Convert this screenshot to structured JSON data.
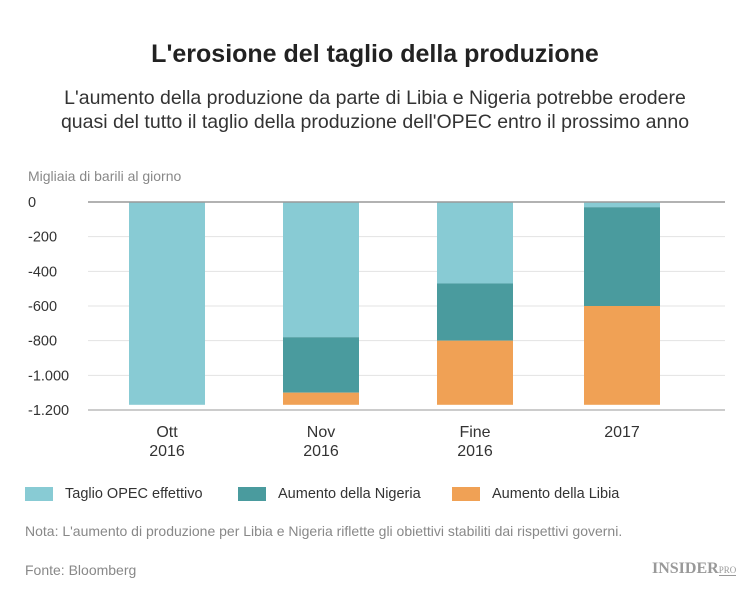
{
  "title": "L'erosione del taglio della produzione",
  "subtitle_line1": "L'aumento della produzione da parte di Libia e Nigeria potrebbe erodere",
  "subtitle_line2": "quasi del tutto il taglio della produzione dell'OPEC entro il prossimo anno",
  "note": "Nota: L'aumento di produzione per Libia e Nigeria riflette gli obiettivi stabiliti dai rispettivi governi.",
  "source": "Fonte: Bloomberg",
  "logo": {
    "main": "INSIDER",
    "suffix": "PRO"
  },
  "chart_data": {
    "type": "bar",
    "stacked": true,
    "ylabel": "Migliaia di barili al giorno",
    "ylim": [
      -1200,
      0
    ],
    "yticks": [
      0,
      -200,
      -400,
      -600,
      -800,
      -1000,
      -1200
    ],
    "ytick_labels": [
      "0",
      "-200",
      "-400",
      "-600",
      "-800",
      "-1.000",
      "-1.200"
    ],
    "categories": [
      [
        "Ott",
        "2016"
      ],
      [
        "Nov",
        "2016"
      ],
      [
        "Fine",
        "2016"
      ],
      [
        "2017"
      ]
    ],
    "grid": true,
    "legend": "bottom",
    "series": [
      {
        "name": "Taglio OPEC effettivo",
        "color": "#88cbd4",
        "values": [
          -1170,
          -780,
          -470,
          -30
        ]
      },
      {
        "name": "Aumento della Nigeria",
        "color": "#4a9b9e",
        "values": [
          0,
          -320,
          -330,
          -570
        ]
      },
      {
        "name": "Aumento della Libia",
        "color": "#f0a155",
        "values": [
          0,
          -70,
          -370,
          -570
        ]
      }
    ]
  }
}
